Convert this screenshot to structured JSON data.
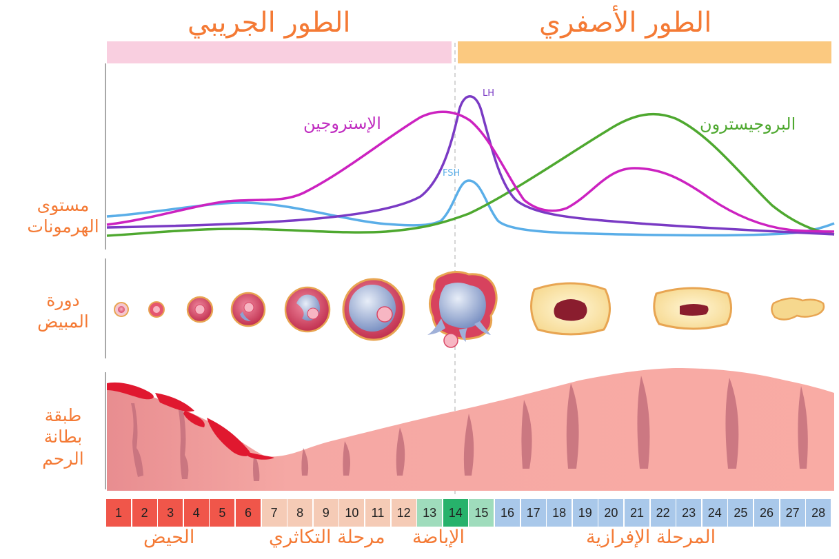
{
  "phases": {
    "follicular": {
      "label": "الطور الجريبي",
      "color": "#f9cfe0"
    },
    "luteal": {
      "label": "الطور الأصفري",
      "color": "#fbc980"
    }
  },
  "rows": {
    "hormones": [
      "مستوى",
      "الهرمونات"
    ],
    "ovary": [
      "دورة",
      "المبيض"
    ],
    "uterus": [
      "طبقة",
      "بطانة",
      "الرحم"
    ]
  },
  "hormones": {
    "estrogen": {
      "label": "الإستروجين",
      "color": "#c02cc0"
    },
    "progesterone": {
      "label": "البروجيسترون",
      "color": "#4ea82f"
    },
    "lh": {
      "label": "LH",
      "color": "#7a3ac4"
    },
    "fsh": {
      "label": "FSH",
      "color": "#5aaee8"
    }
  },
  "days": [
    {
      "n": "1",
      "g": "m"
    },
    {
      "n": "2",
      "g": "m"
    },
    {
      "n": "3",
      "g": "m"
    },
    {
      "n": "4",
      "g": "m"
    },
    {
      "n": "5",
      "g": "m"
    },
    {
      "n": "6",
      "g": "m"
    },
    {
      "n": "7",
      "g": "p"
    },
    {
      "n": "8",
      "g": "p"
    },
    {
      "n": "9",
      "g": "p"
    },
    {
      "n": "10",
      "g": "p"
    },
    {
      "n": "11",
      "g": "p"
    },
    {
      "n": "12",
      "g": "p"
    },
    {
      "n": "13",
      "g": "o"
    },
    {
      "n": "14",
      "g": "oo"
    },
    {
      "n": "15",
      "g": "o"
    },
    {
      "n": "16",
      "g": "s"
    },
    {
      "n": "17",
      "g": "s"
    },
    {
      "n": "18",
      "g": "s"
    },
    {
      "n": "19",
      "g": "s"
    },
    {
      "n": "20",
      "g": "s"
    },
    {
      "n": "21",
      "g": "s"
    },
    {
      "n": "22",
      "g": "s"
    },
    {
      "n": "23",
      "g": "s"
    },
    {
      "n": "24",
      "g": "s"
    },
    {
      "n": "25",
      "g": "s"
    },
    {
      "n": "26",
      "g": "s"
    },
    {
      "n": "27",
      "g": "s"
    },
    {
      "n": "28",
      "g": "s"
    }
  ],
  "day_colors": {
    "m": "#f0564a",
    "p": "#f5cbb6",
    "o": "#9fdcbc",
    "oo": "#27b26b",
    "s": "#a9c8ea"
  },
  "stages": {
    "menstruation": "الحيض",
    "proliferative": "مرحلة التكاثري",
    "ovulation": "الإباضة",
    "secretory": "المرحلة الإفرازية"
  }
}
